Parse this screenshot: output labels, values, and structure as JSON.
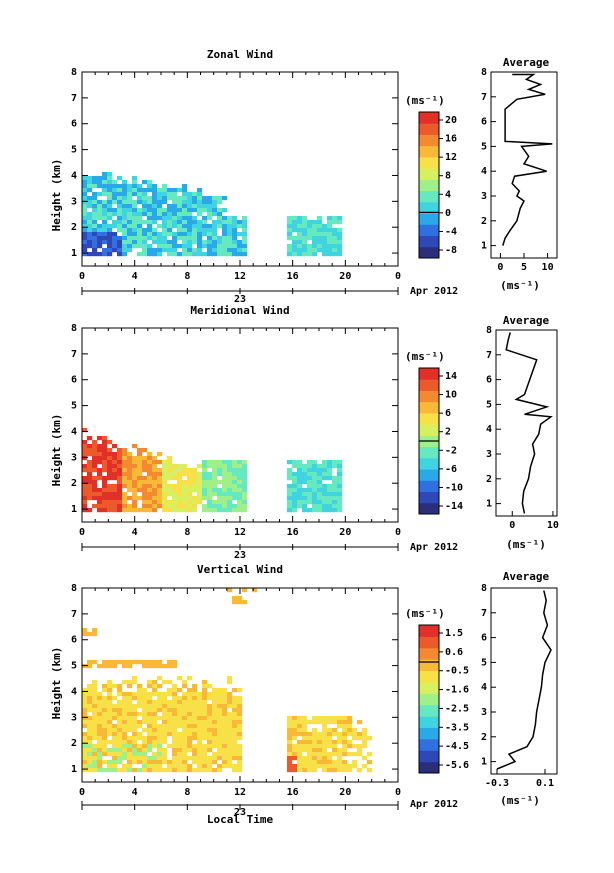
{
  "panels": [
    {
      "title": "Zonal Wind",
      "ylabel": "Height (km)",
      "unit": "(ms⁻¹)",
      "date_label": "Apr 2012",
      "day_label": "23",
      "x_ticks": [
        "0",
        "4",
        "8",
        "12",
        "16",
        "20",
        "0"
      ],
      "y_ticks": [
        "1",
        "2",
        "3",
        "4",
        "5",
        "6",
        "7",
        "8"
      ],
      "colorbar_ticks": [
        "20",
        "16",
        "12",
        "8",
        "4",
        "0",
        "-4",
        "-8"
      ],
      "colorbar_range": [
        -10,
        22
      ],
      "avg_title": "Average",
      "avg_xlabel": "(ms⁻¹)",
      "avg_x_ticks": [
        "0",
        "5",
        "10"
      ],
      "avg_xlim": [
        -2,
        12
      ]
    },
    {
      "title": "Meridional Wind",
      "ylabel": "Height (km)",
      "unit": "(ms⁻¹)",
      "date_label": "Apr 2012",
      "day_label": "23",
      "x_ticks": [
        "0",
        "4",
        "8",
        "12",
        "16",
        "20",
        "0"
      ],
      "y_ticks": [
        "1",
        "2",
        "3",
        "4",
        "5",
        "6",
        "7",
        "8"
      ],
      "colorbar_ticks": [
        "14",
        "10",
        "6",
        "2",
        "-2",
        "-6",
        "-10",
        "-14"
      ],
      "colorbar_range": [
        -16,
        16
      ],
      "avg_title": "Average",
      "avg_xlabel": "(ms⁻¹)",
      "avg_x_ticks": [
        "0",
        "10"
      ],
      "avg_xlim": [
        -4,
        11
      ]
    },
    {
      "title": "Vertical Wind",
      "ylabel": "Height (km)",
      "unit": "(ms⁻¹)",
      "date_label": "Apr 2012",
      "day_label": "23",
      "x_ticks": [
        "0",
        "4",
        "8",
        "12",
        "16",
        "20",
        "0"
      ],
      "y_ticks": [
        "1",
        "2",
        "3",
        "4",
        "5",
        "6",
        "7",
        "8"
      ],
      "colorbar_ticks": [
        "1.5",
        "0.6",
        "-0.5",
        "-1.6",
        "-2.5",
        "-3.5",
        "-4.5",
        "-5.6"
      ],
      "colorbar_range": [
        -6,
        2
      ],
      "avg_title": "Average",
      "avg_xlabel": "(ms⁻¹)",
      "avg_x_ticks": [
        "-0.3",
        "0.1"
      ],
      "avg_xlim": [
        -0.35,
        0.2
      ],
      "xlabel": "Local Time"
    }
  ],
  "colormap": [
    "#2b2f7a",
    "#2f48b8",
    "#3070e0",
    "#2aa8e8",
    "#3fd4e0",
    "#66e8c0",
    "#a0f08a",
    "#d8f060",
    "#f8e048",
    "#f8b838",
    "#f48a30",
    "#ec5a2c",
    "#e03028"
  ],
  "chart_data": [
    {
      "type": "heatmap",
      "title": "Zonal Wind",
      "xlabel": "",
      "ylabel": "Height (km)",
      "xlim": [
        0,
        24
      ],
      "ylim": [
        0.5,
        8
      ],
      "profile": [
        [
          1.0,
          0.5
        ],
        [
          1.3,
          1.0
        ],
        [
          1.6,
          2.0
        ],
        [
          2.0,
          3.5
        ],
        [
          2.5,
          4.2
        ],
        [
          2.8,
          5.0
        ],
        [
          3.0,
          3.5
        ],
        [
          3.2,
          4.0
        ],
        [
          3.5,
          2.5
        ],
        [
          3.8,
          3.0
        ],
        [
          4.0,
          9.8
        ],
        [
          4.3,
          5.0
        ],
        [
          4.6,
          6.0
        ],
        [
          5.0,
          4.5
        ],
        [
          5.1,
          11.0
        ],
        [
          5.2,
          1.0
        ],
        [
          6.5,
          1.0
        ],
        [
          6.9,
          3.5
        ],
        [
          7.1,
          9.5
        ],
        [
          7.3,
          6.0
        ],
        [
          7.5,
          8.5
        ],
        [
          7.7,
          5.5
        ],
        [
          7.9,
          7.0
        ],
        [
          7.9,
          2.5
        ]
      ]
    },
    {
      "type": "heatmap",
      "title": "Meridional Wind",
      "xlabel": "",
      "ylabel": "Height (km)",
      "xlim": [
        0,
        24
      ],
      "ylim": [
        0.5,
        8
      ],
      "profile": [
        [
          0.6,
          3.0
        ],
        [
          1.0,
          2.5
        ],
        [
          1.5,
          2.8
        ],
        [
          2.0,
          4.0
        ],
        [
          2.5,
          4.5
        ],
        [
          3.0,
          5.5
        ],
        [
          3.4,
          5.0
        ],
        [
          3.8,
          6.5
        ],
        [
          4.2,
          7.0
        ],
        [
          4.5,
          9.5
        ],
        [
          4.6,
          3.0
        ],
        [
          4.9,
          8.5
        ],
        [
          5.2,
          1.0
        ],
        [
          5.4,
          3.0
        ],
        [
          6.8,
          6.0
        ],
        [
          7.2,
          -1.5
        ],
        [
          7.6,
          -1.0
        ],
        [
          7.9,
          -0.5
        ]
      ]
    },
    {
      "type": "heatmap",
      "title": "Vertical Wind",
      "xlabel": "Local Time",
      "ylabel": "Height (km)",
      "xlim": [
        0,
        24
      ],
      "ylim": [
        0.5,
        8
      ],
      "profile": [
        [
          0.7,
          -0.3
        ],
        [
          1.0,
          -0.15
        ],
        [
          1.3,
          -0.2
        ],
        [
          1.6,
          -0.05
        ],
        [
          2.0,
          0.0
        ],
        [
          2.5,
          0.02
        ],
        [
          3.0,
          0.03
        ],
        [
          3.5,
          0.05
        ],
        [
          4.0,
          0.07
        ],
        [
          4.5,
          0.08
        ],
        [
          5.0,
          0.1
        ],
        [
          5.5,
          0.15
        ],
        [
          6.0,
          0.08
        ],
        [
          6.5,
          0.12
        ],
        [
          7.0,
          0.09
        ],
        [
          7.5,
          0.11
        ],
        [
          7.9,
          0.09
        ]
      ]
    }
  ]
}
